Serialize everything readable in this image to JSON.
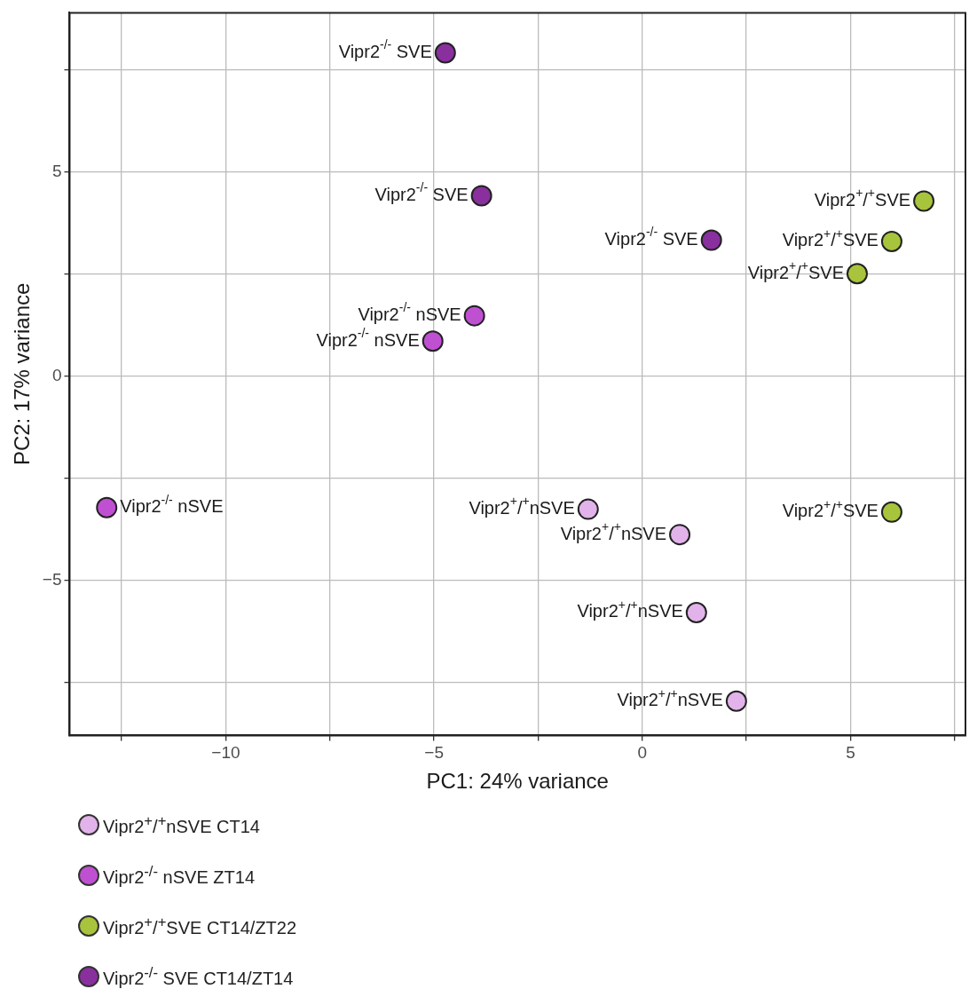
{
  "chart_data": {
    "type": "scatter",
    "xlabel": "PC1: 24% variance",
    "ylabel": "PC2: 17% variance",
    "xlim": [
      -13.75,
      7.76
    ],
    "ylim": [
      -8.8,
      8.9
    ],
    "xticks": [
      {
        "value": -12.5,
        "label": null
      },
      -10,
      {
        "value": -7.5,
        "label": null
      },
      -5,
      {
        "value": -2.5,
        "label": null
      },
      0,
      {
        "value": 2.5,
        "label": null
      },
      5,
      {
        "value": 7.5,
        "label": null
      }
    ],
    "yticks": [
      {
        "value": -7.5,
        "label": null
      },
      -5,
      {
        "value": -2.5,
        "label": null
      },
      0,
      {
        "value": 2.5,
        "label": null
      },
      5,
      {
        "value": 7.5,
        "label": null
      }
    ],
    "grid": true,
    "legend": "bottom",
    "marker": "circle",
    "series": [
      {
        "name": "Vipr2$^{+}$/$^{+}$nSVE CT14",
        "color": "#e2b3ea",
        "x": [
          -1.3,
          0.9,
          1.3,
          2.26
        ],
        "values": [
          -3.26,
          -3.88,
          -5.79,
          -7.96
        ]
      },
      {
        "name": "Vipr2$^{-/-}$ nSVE ZT14",
        "color": "#c050d2",
        "x": [
          -4.03,
          -5.03,
          -12.86
        ],
        "values": [
          1.48,
          0.86,
          -3.22
        ]
      },
      {
        "name": "Vipr2$^{+}$/$^{+}$SVE CT14/ZT22",
        "color": "#a8c43c",
        "x": [
          6.76,
          5.99,
          5.16,
          5.99
        ],
        "values": [
          4.29,
          3.3,
          2.51,
          -3.33
        ]
      },
      {
        "name": "Vipr2$^{-/-}$ SVE CT14/ZT14",
        "color": "#8a2f9e",
        "x": [
          -4.73,
          -3.86,
          1.66
        ],
        "values": [
          7.92,
          4.42,
          3.33
        ]
      }
    ],
    "annotations": [
      {
        "text": "Vipr2$^{+}$/$^{+}$nSVE",
        "x": -1.3,
        "y": -3.26
      },
      {
        "text": "Vipr2$^{+}$/$^{+}$nSVE",
        "x": 0.9,
        "y": -3.88
      },
      {
        "text": "Vipr2$^{+}$/$^{+}$nSVE",
        "x": 1.3,
        "y": -5.79
      },
      {
        "text": "Vipr2$^{+}$/$^{+}$nSVE",
        "x": 2.26,
        "y": -7.96
      },
      {
        "text": "Vipr2$^{-/-}$ nSVE",
        "x": -4.03,
        "y": 1.48
      },
      {
        "text": "Vipr2$^{-/-}$ nSVE",
        "x": -5.03,
        "y": 0.86
      },
      {
        "text": "Vipr2$^{-/-}$ nSVE",
        "x": -12.86,
        "y": -3.22
      },
      {
        "text": "Vipr2$^{+}$/$^{+}$SVE",
        "x": 6.76,
        "y": 4.29
      },
      {
        "text": "Vipr2$^{+}$/$^{+}$SVE",
        "x": 5.99,
        "y": 3.3
      },
      {
        "text": "Vipr2$^{+}$/$^{+}$SVE",
        "x": 5.16,
        "y": 2.51
      },
      {
        "text": "Vipr2$^{+}$/$^{+}$SVE",
        "x": 5.99,
        "y": -3.33
      },
      {
        "text": "Vipr2$^{-/-}$ SVE",
        "x": -4.73,
        "y": 7.92
      },
      {
        "text": "Vipr2$^{-/-}$ SVE",
        "x": -3.86,
        "y": 4.42
      },
      {
        "text": "Vipr2$^{-/-}$ SVE",
        "x": 1.66,
        "y": 3.33
      }
    ]
  }
}
